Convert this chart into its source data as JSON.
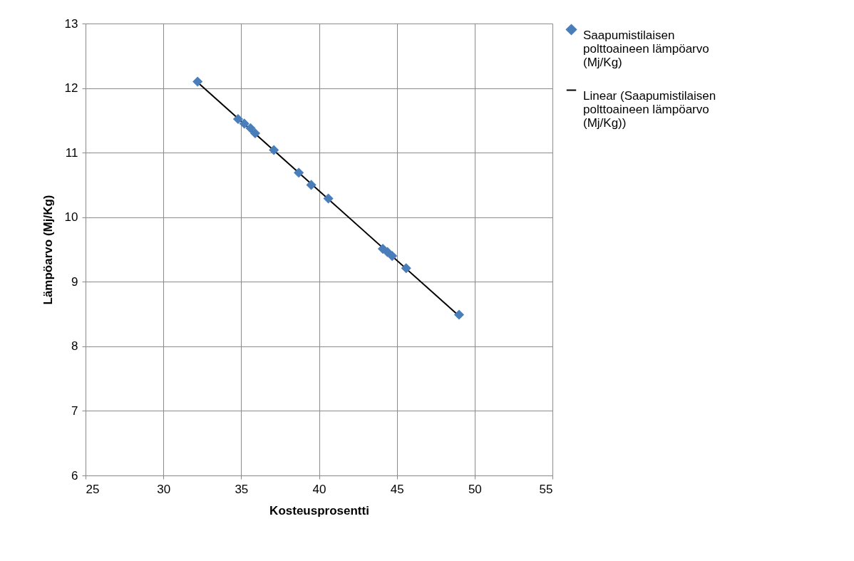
{
  "chart_data": {
    "type": "scatter",
    "xlabel": "Kosteusprosentti",
    "ylabel": "Lämpöarvo (Mj/Kg)",
    "xlim": [
      25,
      55
    ],
    "ylim": [
      6,
      13
    ],
    "xticks": [
      25,
      30,
      35,
      40,
      45,
      50,
      55
    ],
    "yticks": [
      6,
      7,
      8,
      9,
      10,
      11,
      12,
      13
    ],
    "grid": true,
    "legend": "right",
    "series": [
      {
        "name": "Saapumistilaisen polttoaineen lämpöarvo (Mj/Kg)",
        "marker": "diamond",
        "color": "#4a7ebb",
        "x": [
          32.2,
          34.8,
          35.2,
          35.6,
          35.9,
          37.1,
          38.7,
          39.5,
          40.6,
          44.1,
          44.4,
          44.7,
          45.6,
          49.0
        ],
        "values": [
          12.1,
          11.52,
          11.45,
          11.38,
          11.3,
          11.04,
          10.69,
          10.5,
          10.29,
          9.51,
          9.46,
          9.4,
          9.21,
          8.49
        ]
      },
      {
        "name": "Linear (Saapumistilaisen polttoaineen lämpöarvo (Mj/Kg))",
        "type": "line",
        "color": "#000000",
        "x": [
          32.2,
          49.0
        ],
        "values": [
          12.09,
          8.47
        ]
      }
    ]
  }
}
